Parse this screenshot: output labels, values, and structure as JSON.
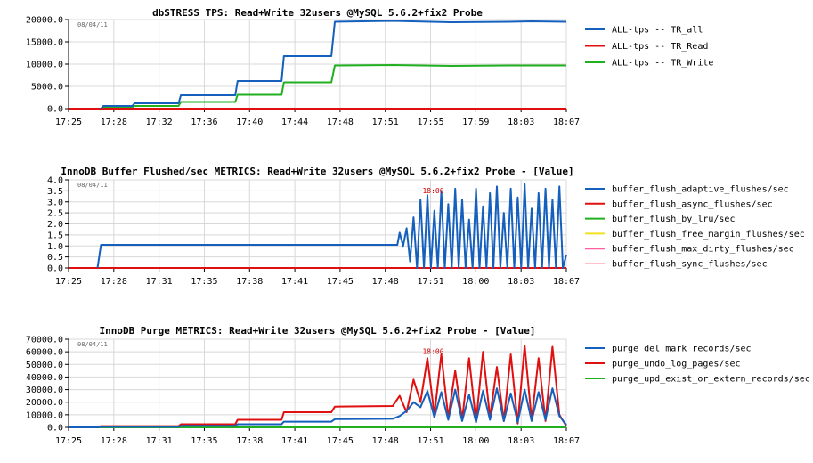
{
  "chart_data": [
    {
      "type": "line",
      "title": "dbSTRESS TPS: Read+Write 32users @MySQL 5.6.2+fix2 Probe",
      "date_label": "08/04/11",
      "ylim": [
        0,
        20000
      ],
      "yticks": [
        "0.0",
        "5000.0",
        "10000.0",
        "15000.0",
        "20000.0"
      ],
      "xlim": [
        0,
        43
      ],
      "xticks": [
        "17:25",
        "17:28",
        "17:32",
        "17:36",
        "17:40",
        "17:44",
        "17:48",
        "17:51",
        "17:55",
        "17:59",
        "18:03",
        "18:07"
      ],
      "grid": true,
      "legend_position": "right",
      "annotation": null,
      "series": [
        {
          "name": "ALL-tps -- TR_all",
          "color": "#1560bd",
          "points": [
            [
              2.8,
              0
            ],
            [
              3,
              600
            ],
            [
              5.5,
              600
            ],
            [
              5.7,
              1200
            ],
            [
              9.5,
              1200
            ],
            [
              9.7,
              3000
            ],
            [
              14.4,
              3000
            ],
            [
              14.6,
              6200
            ],
            [
              18.4,
              6200
            ],
            [
              18.6,
              11800
            ],
            [
              22.7,
              11800
            ],
            [
              23,
              19500
            ],
            [
              28,
              19700
            ],
            [
              33,
              19400
            ],
            [
              38,
              19500
            ],
            [
              40,
              19600
            ],
            [
              43,
              19500
            ]
          ]
        },
        {
          "name": "ALL-tps -- TR_Read",
          "color": "#e01010",
          "points": [
            [
              0,
              0
            ],
            [
              43,
              0
            ]
          ]
        },
        {
          "name": "ALL-tps -- TR_Write",
          "color": "#20b020",
          "points": [
            [
              2.8,
              0
            ],
            [
              3,
              300
            ],
            [
              5.5,
              300
            ],
            [
              5.7,
              600
            ],
            [
              9.5,
              600
            ],
            [
              9.7,
              1500
            ],
            [
              14.4,
              1500
            ],
            [
              14.6,
              3100
            ],
            [
              18.4,
              3100
            ],
            [
              18.6,
              5900
            ],
            [
              22.7,
              5900
            ],
            [
              23,
              9700
            ],
            [
              28,
              9800
            ],
            [
              33,
              9600
            ],
            [
              38,
              9700
            ],
            [
              43,
              9700
            ]
          ]
        }
      ]
    },
    {
      "type": "line",
      "title": "InnoDB Buffer Flushed/sec METRICS: Read+Write 32users @MySQL 5.6.2+fix2 Probe - [Value]",
      "date_label": "08/04/11",
      "ylim": [
        0,
        4
      ],
      "yticks": [
        "0.0",
        "0.5",
        "1.0",
        "1.5",
        "2.0",
        "2.5",
        "3.0",
        "3.5",
        "4.0"
      ],
      "xlim": [
        0,
        43
      ],
      "xticks": [
        "17:25",
        "17:28",
        "17:31",
        "17:35",
        "17:38",
        "17:41",
        "17:45",
        "17:48",
        "17:51",
        "18:00",
        "18:03",
        "18:07"
      ],
      "grid": true,
      "legend_position": "right",
      "annotation": {
        "label": "18:00",
        "x": 31.5,
        "y": 3.4
      },
      "series": [
        {
          "name": "buffer_flush_adaptive_flushes/sec",
          "color": "#1560bd",
          "points": [
            [
              2.5,
              0
            ],
            [
              2.8,
              1.05
            ],
            [
              10,
              1.05
            ],
            [
              20,
              1.05
            ],
            [
              28,
              1.05
            ],
            [
              28.4,
              1.05
            ],
            [
              28.6,
              1.6
            ],
            [
              28.9,
              1.0
            ],
            [
              29.2,
              1.8
            ],
            [
              29.5,
              0.3
            ],
            [
              29.8,
              2.3
            ],
            [
              30.1,
              0
            ],
            [
              30.4,
              3.1
            ],
            [
              30.7,
              0
            ],
            [
              31.0,
              3.3
            ],
            [
              31.3,
              0
            ],
            [
              31.6,
              2.6
            ],
            [
              31.9,
              0
            ],
            [
              32.2,
              3.5
            ],
            [
              32.5,
              0
            ],
            [
              32.8,
              2.9
            ],
            [
              33.1,
              0
            ],
            [
              33.4,
              3.6
            ],
            [
              33.7,
              0
            ],
            [
              34.0,
              3.1
            ],
            [
              34.3,
              0
            ],
            [
              34.6,
              2.2
            ],
            [
              34.9,
              0
            ],
            [
              35.2,
              3.6
            ],
            [
              35.5,
              0
            ],
            [
              35.8,
              2.8
            ],
            [
              36.1,
              0
            ],
            [
              36.4,
              3.4
            ],
            [
              36.7,
              0
            ],
            [
              37.0,
              3.7
            ],
            [
              37.3,
              0
            ],
            [
              37.6,
              2.5
            ],
            [
              37.9,
              0
            ],
            [
              38.2,
              3.6
            ],
            [
              38.5,
              0
            ],
            [
              38.8,
              3.2
            ],
            [
              39.1,
              0
            ],
            [
              39.4,
              3.8
            ],
            [
              39.7,
              0
            ],
            [
              40.0,
              2.7
            ],
            [
              40.3,
              0
            ],
            [
              40.6,
              3.4
            ],
            [
              40.9,
              0
            ],
            [
              41.2,
              3.6
            ],
            [
              41.5,
              0
            ],
            [
              41.8,
              3.1
            ],
            [
              42.1,
              0
            ],
            [
              42.4,
              3.7
            ],
            [
              42.7,
              0
            ],
            [
              43,
              0.6
            ]
          ]
        },
        {
          "name": "buffer_flush_async_flushes/sec",
          "color": "#e01010",
          "points": [
            [
              0,
              0
            ],
            [
              43,
              0
            ]
          ]
        },
        {
          "name": "buffer_flush_by_lru/sec",
          "color": "#20b020",
          "points": [
            [
              0,
              0
            ],
            [
              43,
              0
            ]
          ]
        },
        {
          "name": "buffer_flush_free_margin_flushes/sec",
          "color": "#f0e020",
          "points": [
            [
              0,
              0
            ],
            [
              43,
              0
            ]
          ]
        },
        {
          "name": "buffer_flush_max_dirty_flushes/sec",
          "color": "#ff5fa0",
          "points": [
            [
              0,
              0
            ],
            [
              43,
              0
            ]
          ]
        },
        {
          "name": "buffer_flush_sync_flushes/sec",
          "color": "#ffc0c8",
          "points": [
            [
              0,
              0
            ],
            [
              43,
              0
            ]
          ]
        }
      ]
    },
    {
      "type": "line",
      "title": "InnoDB Purge METRICS: Read+Write 32users @MySQL 5.6.2+fix2 Probe - [Value]",
      "date_label": "08/04/11",
      "ylim": [
        0,
        70000
      ],
      "yticks": [
        "0.0",
        "10000.0",
        "20000.0",
        "30000.0",
        "40000.0",
        "50000.0",
        "60000.0",
        "70000.0"
      ],
      "xlim": [
        0,
        43
      ],
      "xticks": [
        "17:25",
        "17:28",
        "17:31",
        "17:35",
        "17:38",
        "17:41",
        "17:45",
        "17:48",
        "17:51",
        "18:00",
        "18:03",
        "18:07"
      ],
      "grid": true,
      "legend_position": "right",
      "annotation": {
        "label": "18:00",
        "x": 31.5,
        "y": 58500
      },
      "series": [
        {
          "name": "purge_del_mark_records/sec",
          "color": "#1560bd",
          "points": [
            [
              0,
              0
            ],
            [
              2.5,
              0
            ],
            [
              2.8,
              400
            ],
            [
              9.5,
              400
            ],
            [
              9.7,
              1200
            ],
            [
              14.4,
              1200
            ],
            [
              14.6,
              2500
            ],
            [
              18.4,
              2500
            ],
            [
              18.6,
              4500
            ],
            [
              22.7,
              4500
            ],
            [
              23,
              6500
            ],
            [
              28,
              6800
            ],
            [
              28.6,
              9000
            ],
            [
              29.2,
              13000
            ],
            [
              29.8,
              20000
            ],
            [
              30.4,
              16000
            ],
            [
              31.0,
              29000
            ],
            [
              31.6,
              8000
            ],
            [
              32.2,
              28000
            ],
            [
              32.8,
              6000
            ],
            [
              33.4,
              30000
            ],
            [
              34.0,
              5000
            ],
            [
              34.6,
              26000
            ],
            [
              35.2,
              4000
            ],
            [
              35.8,
              29000
            ],
            [
              36.4,
              6000
            ],
            [
              37.0,
              31000
            ],
            [
              37.6,
              5000
            ],
            [
              38.2,
              27000
            ],
            [
              38.8,
              4000
            ],
            [
              39.4,
              30000
            ],
            [
              40.0,
              5000
            ],
            [
              40.6,
              28000
            ],
            [
              41.2,
              6000
            ],
            [
              41.8,
              31000
            ],
            [
              42.4,
              9000
            ],
            [
              43,
              2000
            ]
          ]
        },
        {
          "name": "purge_undo_log_pages/sec",
          "color": "#e01010",
          "points": [
            [
              0,
              0
            ],
            [
              2.5,
              0
            ],
            [
              2.8,
              1000
            ],
            [
              9.5,
              1000
            ],
            [
              9.7,
              2500
            ],
            [
              14.4,
              2500
            ],
            [
              14.6,
              6000
            ],
            [
              18.4,
              6000
            ],
            [
              18.6,
              12000
            ],
            [
              22.7,
              12000
            ],
            [
              23,
              16500
            ],
            [
              28,
              17000
            ],
            [
              28.6,
              25000
            ],
            [
              29.2,
              12000
            ],
            [
              29.8,
              38000
            ],
            [
              30.4,
              20000
            ],
            [
              31.0,
              55000
            ],
            [
              31.6,
              10000
            ],
            [
              32.2,
              58000
            ],
            [
              32.8,
              8000
            ],
            [
              33.4,
              45000
            ],
            [
              34.0,
              6000
            ],
            [
              34.6,
              55000
            ],
            [
              35.2,
              4000
            ],
            [
              35.8,
              60000
            ],
            [
              36.4,
              8000
            ],
            [
              37.0,
              48000
            ],
            [
              37.6,
              5000
            ],
            [
              38.2,
              58000
            ],
            [
              38.8,
              3000
            ],
            [
              39.4,
              65000
            ],
            [
              40.0,
              6000
            ],
            [
              40.6,
              55000
            ],
            [
              41.2,
              5000
            ],
            [
              41.8,
              64000
            ],
            [
              42.4,
              10000
            ],
            [
              43,
              1000
            ]
          ]
        },
        {
          "name": "purge_upd_exist_or_extern_records/sec",
          "color": "#20b020",
          "points": [
            [
              0,
              0
            ],
            [
              43,
              0
            ]
          ]
        }
      ]
    }
  ]
}
